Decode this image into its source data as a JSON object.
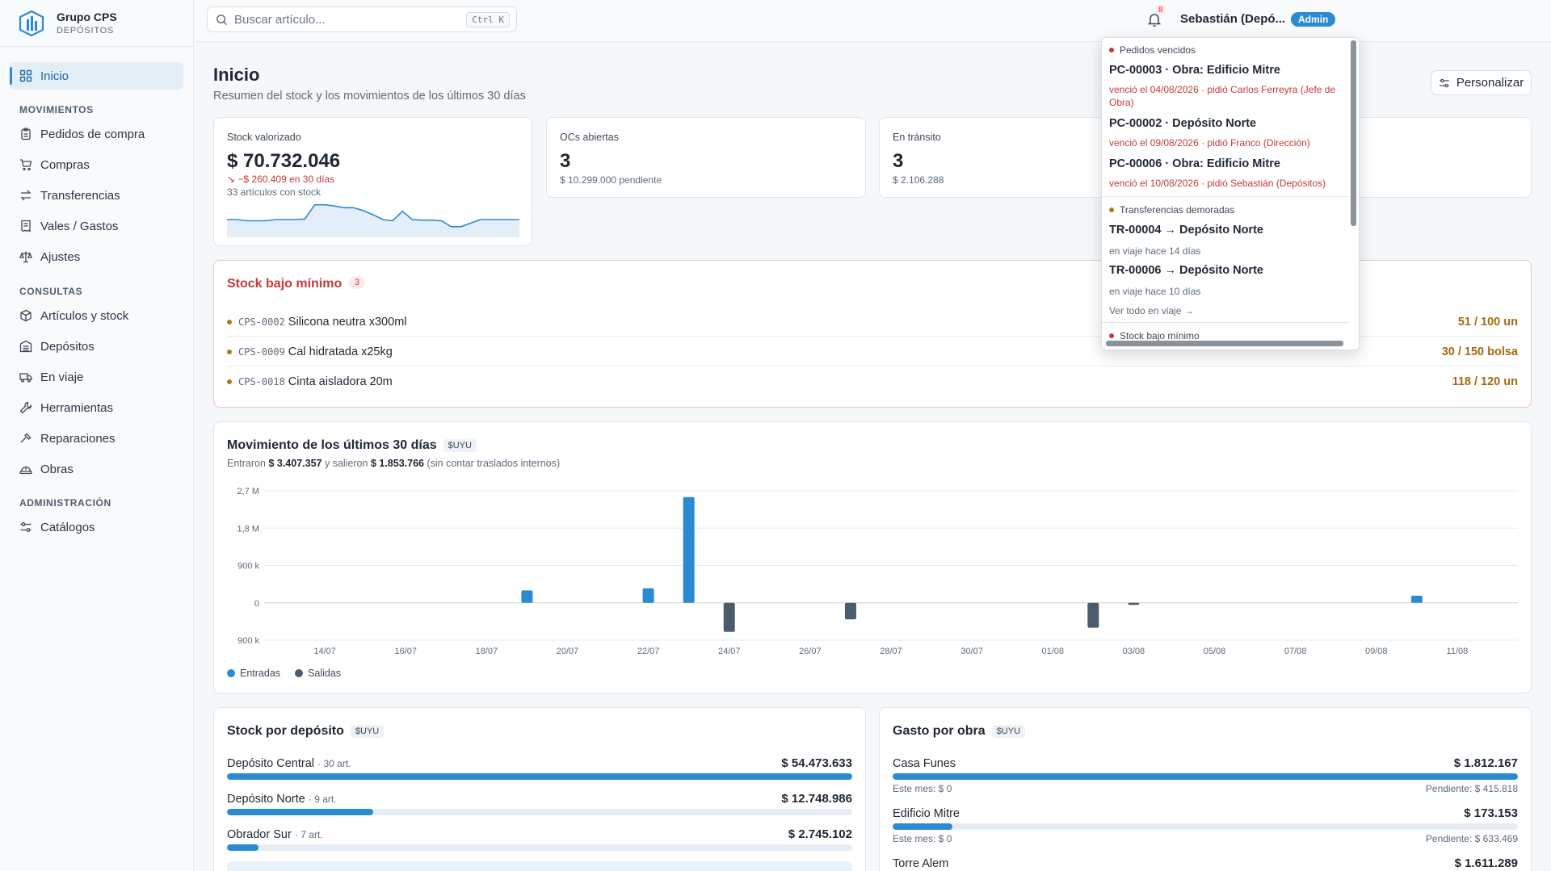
{
  "brand": {
    "name": "Grupo CPS",
    "sub": "DEPÓSITOS"
  },
  "sidebar": {
    "home": "Inicio",
    "sections": {
      "movimientos": "MOVIMIENTOS",
      "consultas": "CONSULTAS",
      "admin": "ADMINISTRACIÓN"
    },
    "items": [
      {
        "label": "Pedidos de compra",
        "icon": "clipboard-icon"
      },
      {
        "label": "Compras",
        "icon": "cart-icon"
      },
      {
        "label": "Transferencias",
        "icon": "transfer-icon"
      },
      {
        "label": "Vales / Gastos",
        "icon": "receipt-icon"
      },
      {
        "label": "Ajustes",
        "icon": "scale-icon"
      },
      {
        "label": "Artículos y stock",
        "icon": "box-icon"
      },
      {
        "label": "Depósitos",
        "icon": "warehouse-icon"
      },
      {
        "label": "En viaje",
        "icon": "truck-icon"
      },
      {
        "label": "Herramientas",
        "icon": "wrench-icon"
      },
      {
        "label": "Reparaciones",
        "icon": "hammer-icon"
      },
      {
        "label": "Obras",
        "icon": "helmet-icon"
      },
      {
        "label": "Catálogos",
        "icon": "sliders-icon"
      }
    ]
  },
  "topbar": {
    "search_placeholder": "Buscar artículo...",
    "shortcut": "Ctrl K",
    "notif_count": "8",
    "user": "Sebastián (Depó...",
    "role": "Admin"
  },
  "page": {
    "title": "Inicio",
    "subtitle": "Resumen del stock y los movimientos de los últimos 30 días",
    "customize": "Personalizar"
  },
  "kpis": {
    "stock": {
      "label": "Stock valorizado",
      "value": "$ 70.732.046",
      "delta": "↘ −$ 260.409 en 30 días",
      "sub": "33 artículos con stock",
      "spark": [
        30,
        30,
        28,
        28,
        28,
        30,
        30,
        30,
        31,
        55,
        55,
        53,
        50,
        50,
        45,
        38,
        30,
        28,
        44,
        30,
        29,
        29,
        28,
        18,
        18,
        24,
        30,
        30,
        30,
        30,
        30
      ]
    },
    "ocs": {
      "label": "OCs abiertas",
      "value": "3",
      "sub": "$ 10.299.000 pendiente"
    },
    "transit": {
      "label": "En tránsito",
      "value": "3",
      "sub": "$ 2.106.288"
    }
  },
  "low_stock": {
    "title": "Stock bajo mínimo",
    "count": "3",
    "rows": [
      {
        "code": "CPS-0002",
        "name": "Silicona neutra x300ml",
        "qty": "51 / 100 un"
      },
      {
        "code": "CPS-0009",
        "name": "Cal hidratada x25kg",
        "qty": "30 / 150 bolsa"
      },
      {
        "code": "CPS-0018",
        "name": "Cinta aisladora 20m",
        "qty": "118 / 120 un"
      }
    ]
  },
  "movement": {
    "title": "Movimiento de los últimos 30 días",
    "currency": "$UYU",
    "desc_prefix": "Entraron",
    "in_total": "$ 3.407.357",
    "desc_mid": "y salieron",
    "out_total": "$ 1.853.766",
    "desc_suffix": "(sin contar traslados internos)",
    "legend_in": "Entradas",
    "legend_out": "Salidas",
    "colors": {
      "in": "#2a8bd2",
      "out": "#4b5d6d"
    }
  },
  "chart_data": {
    "type": "bar",
    "title": "Movimiento de los últimos 30 días",
    "ylim": [
      -900000,
      2700000
    ],
    "yticks": [
      "2,7 M",
      "1,8 M",
      "900 k",
      "0",
      "900 k"
    ],
    "ytick_values": [
      2700000,
      1800000,
      900000,
      0,
      -900000
    ],
    "xticks": [
      "14/07",
      "16/07",
      "18/07",
      "20/07",
      "22/07",
      "24/07",
      "26/07",
      "28/07",
      "30/07",
      "01/08",
      "03/08",
      "05/08",
      "07/08",
      "09/08",
      "11/08"
    ],
    "categories": [
      "13/07",
      "14/07",
      "15/07",
      "16/07",
      "17/07",
      "18/07",
      "19/07",
      "20/07",
      "21/07",
      "22/07",
      "23/07",
      "24/07",
      "25/07",
      "26/07",
      "27/07",
      "28/07",
      "29/07",
      "30/07",
      "31/07",
      "01/08",
      "02/08",
      "03/08",
      "04/08",
      "05/08",
      "06/08",
      "07/08",
      "08/08",
      "09/08",
      "10/08",
      "11/08",
      "12/08"
    ],
    "series": [
      {
        "name": "Entradas",
        "values": [
          0,
          0,
          0,
          0,
          0,
          0,
          300000,
          0,
          0,
          350000,
          2550000,
          0,
          0,
          0,
          0,
          0,
          0,
          0,
          0,
          0,
          0,
          0,
          0,
          0,
          0,
          0,
          0,
          0,
          170000,
          0,
          0
        ]
      },
      {
        "name": "Salidas",
        "values": [
          0,
          0,
          0,
          0,
          0,
          0,
          0,
          0,
          0,
          0,
          0,
          -700000,
          0,
          0,
          -400000,
          0,
          0,
          0,
          0,
          0,
          -600000,
          -50000,
          0,
          0,
          0,
          0,
          0,
          0,
          0,
          0,
          0
        ]
      }
    ]
  },
  "stock_by_depot": {
    "title": "Stock por depósito",
    "currency": "$UYU",
    "rows": [
      {
        "name": "Depósito Central",
        "art": "· 30 art.",
        "amount": "$ 54.473.633",
        "fraction": 1.0
      },
      {
        "name": "Depósito Norte",
        "art": "· 9 art.",
        "amount": "$ 12.748.986",
        "fraction": 0.234
      },
      {
        "name": "Obrador Sur",
        "art": "· 7 art.",
        "amount": "$ 2.745.102",
        "fraction": 0.05
      }
    ]
  },
  "spend_by_site": {
    "title": "Gasto por obra",
    "currency": "$UYU",
    "rows": [
      {
        "name": "Casa Funes",
        "amount": "$ 1.812.167",
        "month": "Este mes: $ 0",
        "pending": "Pendiente: $ 415.818",
        "fraction": 1.0
      },
      {
        "name": "Edificio Mitre",
        "amount": "$ 173.153",
        "month": "Este mes: $ 0",
        "pending": "Pendiente: $ 633.469",
        "fraction": 0.096
      },
      {
        "name": "Torre Alem",
        "amount": "$ 1.611.289",
        "fraction": 0.889
      }
    ]
  },
  "notifications": {
    "sections": [
      {
        "label": "Pedidos vencidos",
        "color": "#c23a3a"
      },
      {
        "label": "Transferencias demoradas",
        "color": "#b07a1a"
      },
      {
        "label": "Stock bajo mínimo",
        "color": "#c23a3a"
      }
    ],
    "overdue": [
      {
        "title": "PC-00003 · Obra: Edificio Mitre",
        "detail": "venció el 04/08/2026 · pidió Carlos Ferreyra (Jefe de Obra)"
      },
      {
        "title": "PC-00002 · Depósito Norte",
        "detail": "venció el 09/08/2026 · pidió Franco (Dirección)"
      },
      {
        "title": "PC-00006 · Obra: Edificio Mitre",
        "detail": "venció el 10/08/2026 · pidió Sebastián (Depósitos)"
      }
    ],
    "delayed": [
      {
        "title": "TR-00004 → Depósito Norte",
        "detail": "en viaje hace 14 días"
      },
      {
        "title": "TR-00006 → Depósito Norte",
        "detail": "en viaje hace 10 días"
      }
    ],
    "see_all": "Ver todo en viaje →"
  }
}
